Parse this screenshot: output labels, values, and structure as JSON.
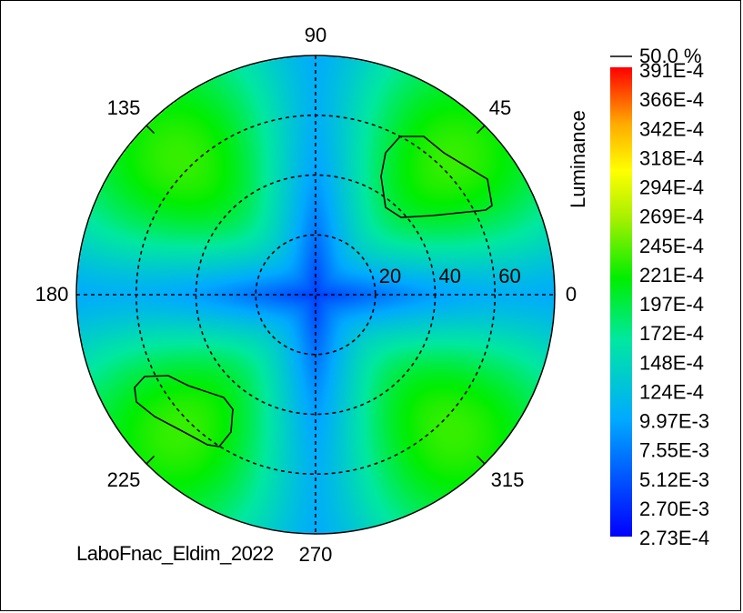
{
  "chart_data": {
    "type": "heatmap",
    "projection": "polar",
    "angle_labels": [
      "0",
      "45",
      "90",
      "135",
      "180",
      "225",
      "270",
      "315"
    ],
    "radial_labels": [
      "20",
      "40",
      "60"
    ],
    "radial_max": 80,
    "colorbar": {
      "title": "Luminance",
      "contour_label": "50.0 %",
      "tick_labels": [
        "391E-4",
        "366E-4",
        "342E-4",
        "318E-4",
        "294E-4",
        "269E-4",
        "245E-4",
        "221E-4",
        "197E-4",
        "172E-4",
        "148E-4",
        "124E-4",
        "9.97E-3",
        "7.55E-3",
        "5.12E-3",
        "2.70E-3",
        "2.73E-4"
      ],
      "min": 0.000273,
      "max": 0.0391
    },
    "peaks": [
      {
        "azimuth_deg": 45,
        "radius": 65,
        "value": 0.0221
      },
      {
        "azimuth_deg": 225,
        "radius": 65,
        "value": 0.0221
      }
    ],
    "footer": "LaboFnac_Eldim_2022"
  }
}
